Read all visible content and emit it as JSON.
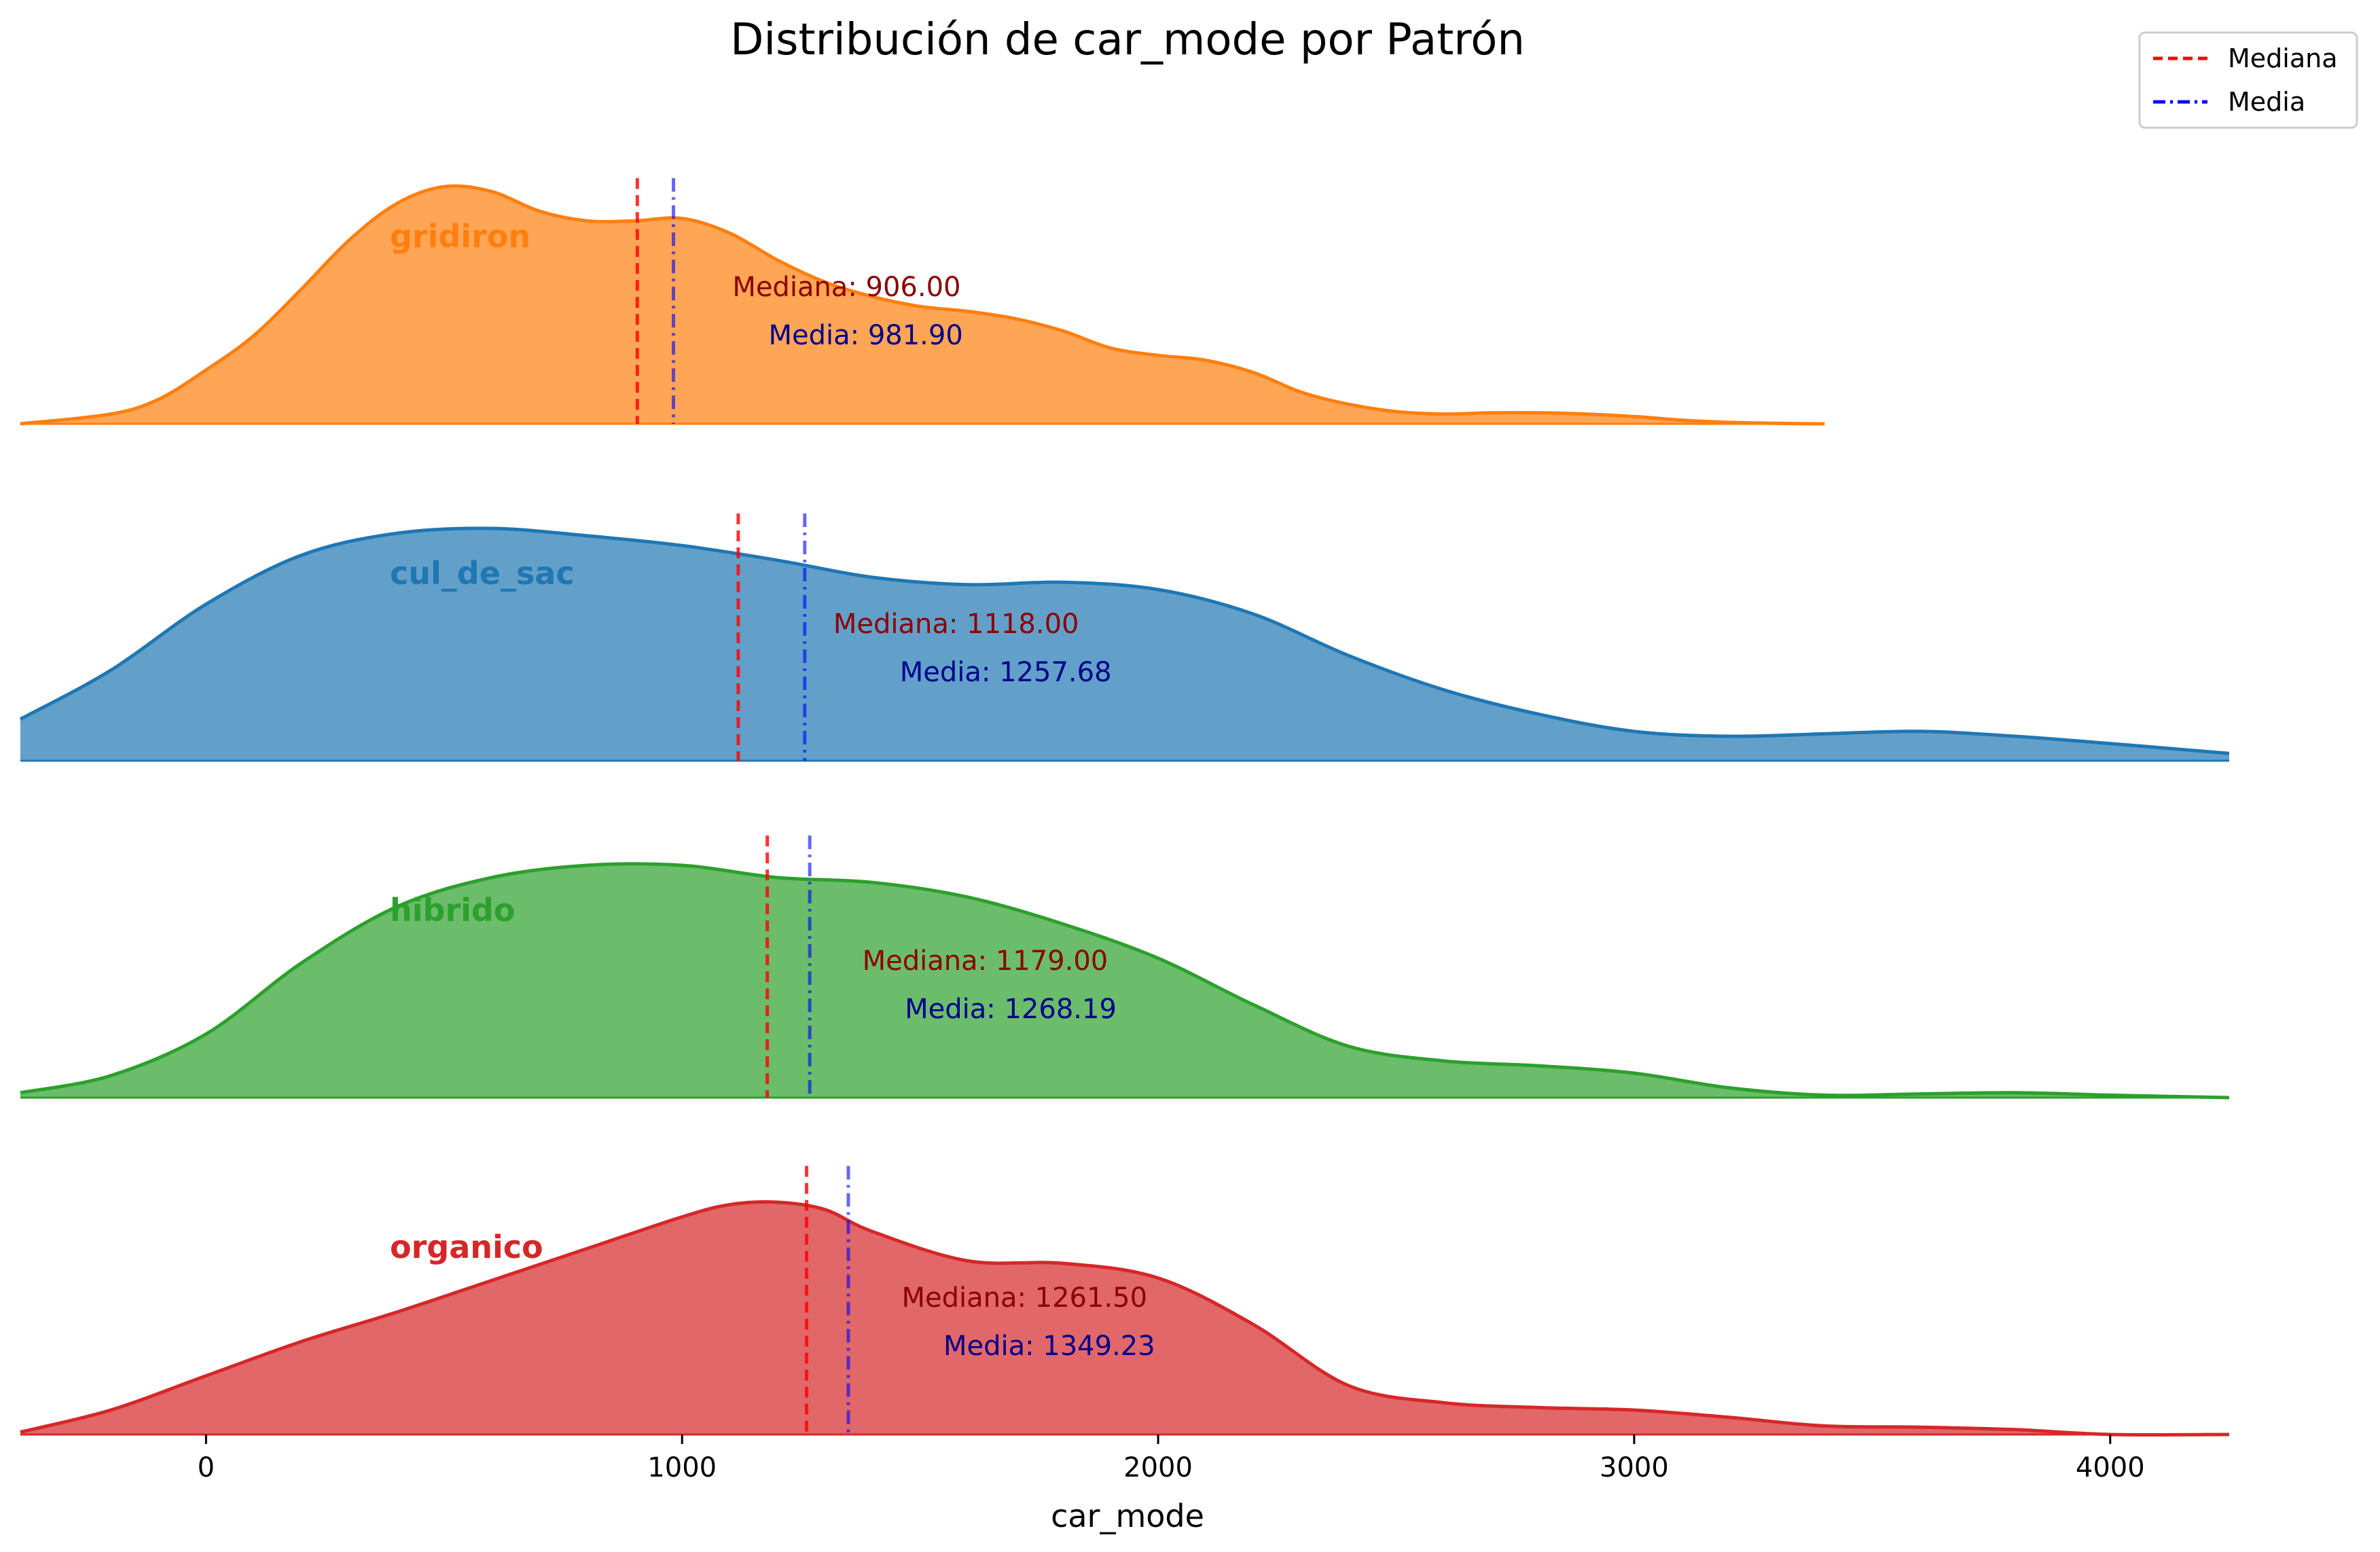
{
  "chart_data": {
    "type": "area",
    "subtype": "ridgeline-kde",
    "title": "Distribución de car_mode por Patrón",
    "xlabel": "car_mode",
    "ylabel": "",
    "xlim": [
      -390,
      4250
    ],
    "xticks": [
      0,
      1000,
      2000,
      3000,
      4000
    ],
    "grid": false,
    "legend": {
      "position": "top-right",
      "entries": [
        {
          "label": "Mediana",
          "color": "#ff0000",
          "style": "dashed"
        },
        {
          "label": "Media",
          "color": "#0000ff",
          "style": "dashdot"
        }
      ]
    },
    "series": [
      {
        "name": "gridiron",
        "color": "#ff7f0e",
        "median": 906.0,
        "mean": 981.9,
        "median_label": "Mediana: 906.00",
        "mean_label": "Media: 981.90",
        "x": [
          -390,
          -200,
          -100,
          0,
          100,
          200,
          300,
          400,
          500,
          600,
          700,
          800,
          900,
          1000,
          1100,
          1200,
          1300,
          1400,
          1500,
          1600,
          1700,
          1800,
          1900,
          2000,
          2100,
          2200,
          2300,
          2400,
          2500,
          2600,
          2700,
          2800,
          2900,
          3000,
          3100,
          3200,
          3300,
          3400
        ],
        "density": [
          0.0,
          0.04,
          0.1,
          0.22,
          0.36,
          0.55,
          0.75,
          0.9,
          0.97,
          0.95,
          0.87,
          0.83,
          0.83,
          0.84,
          0.78,
          0.67,
          0.58,
          0.52,
          0.48,
          0.46,
          0.43,
          0.38,
          0.31,
          0.28,
          0.26,
          0.21,
          0.13,
          0.08,
          0.05,
          0.04,
          0.045,
          0.045,
          0.04,
          0.03,
          0.015,
          0.006,
          0.002,
          0.0
        ]
      },
      {
        "name": "cul_de_sac",
        "color": "#1f77b4",
        "median": 1118.0,
        "mean": 1257.68,
        "median_label": "Mediana: 1118.00",
        "mean_label": "Media: 1257.68",
        "x": [
          -390,
          -200,
          0,
          200,
          400,
          600,
          800,
          1000,
          1200,
          1400,
          1600,
          1800,
          2000,
          2200,
          2400,
          2600,
          2800,
          3000,
          3200,
          3400,
          3600,
          3800,
          4000,
          4250
        ],
        "density": [
          0.17,
          0.37,
          0.64,
          0.84,
          0.93,
          0.95,
          0.92,
          0.88,
          0.82,
          0.75,
          0.72,
          0.73,
          0.7,
          0.6,
          0.43,
          0.29,
          0.19,
          0.12,
          0.1,
          0.11,
          0.12,
          0.1,
          0.07,
          0.03
        ]
      },
      {
        "name": "hibrido",
        "color": "#2ca02c",
        "median": 1179.0,
        "mean": 1268.19,
        "median_label": "Mediana: 1179.00",
        "mean_label": "Media: 1268.19",
        "x": [
          -390,
          -200,
          0,
          200,
          400,
          600,
          800,
          1000,
          1200,
          1400,
          1600,
          1800,
          2000,
          2200,
          2400,
          2600,
          2800,
          3000,
          3200,
          3400,
          3600,
          3800,
          4000,
          4250
        ],
        "density": [
          0.02,
          0.09,
          0.26,
          0.55,
          0.78,
          0.9,
          0.95,
          0.95,
          0.9,
          0.88,
          0.82,
          0.71,
          0.57,
          0.38,
          0.21,
          0.15,
          0.13,
          0.1,
          0.04,
          0.01,
          0.015,
          0.02,
          0.01,
          0.0
        ]
      },
      {
        "name": "organico",
        "color": "#d62728",
        "median": 1261.5,
        "mean": 1349.23,
        "median_label": "Mediana: 1261.50",
        "mean_label": "Media: 1349.23",
        "x": [
          -390,
          -200,
          0,
          200,
          400,
          600,
          800,
          1000,
          1100,
          1200,
          1300,
          1400,
          1600,
          1800,
          2000,
          2200,
          2400,
          2600,
          2800,
          3000,
          3200,
          3400,
          3600,
          3800,
          4000,
          4250
        ],
        "density": [
          0.01,
          0.1,
          0.24,
          0.38,
          0.5,
          0.63,
          0.76,
          0.89,
          0.94,
          0.95,
          0.92,
          0.83,
          0.71,
          0.7,
          0.64,
          0.45,
          0.2,
          0.13,
          0.11,
          0.1,
          0.07,
          0.035,
          0.03,
          0.02,
          0.0,
          0.0
        ]
      }
    ]
  }
}
